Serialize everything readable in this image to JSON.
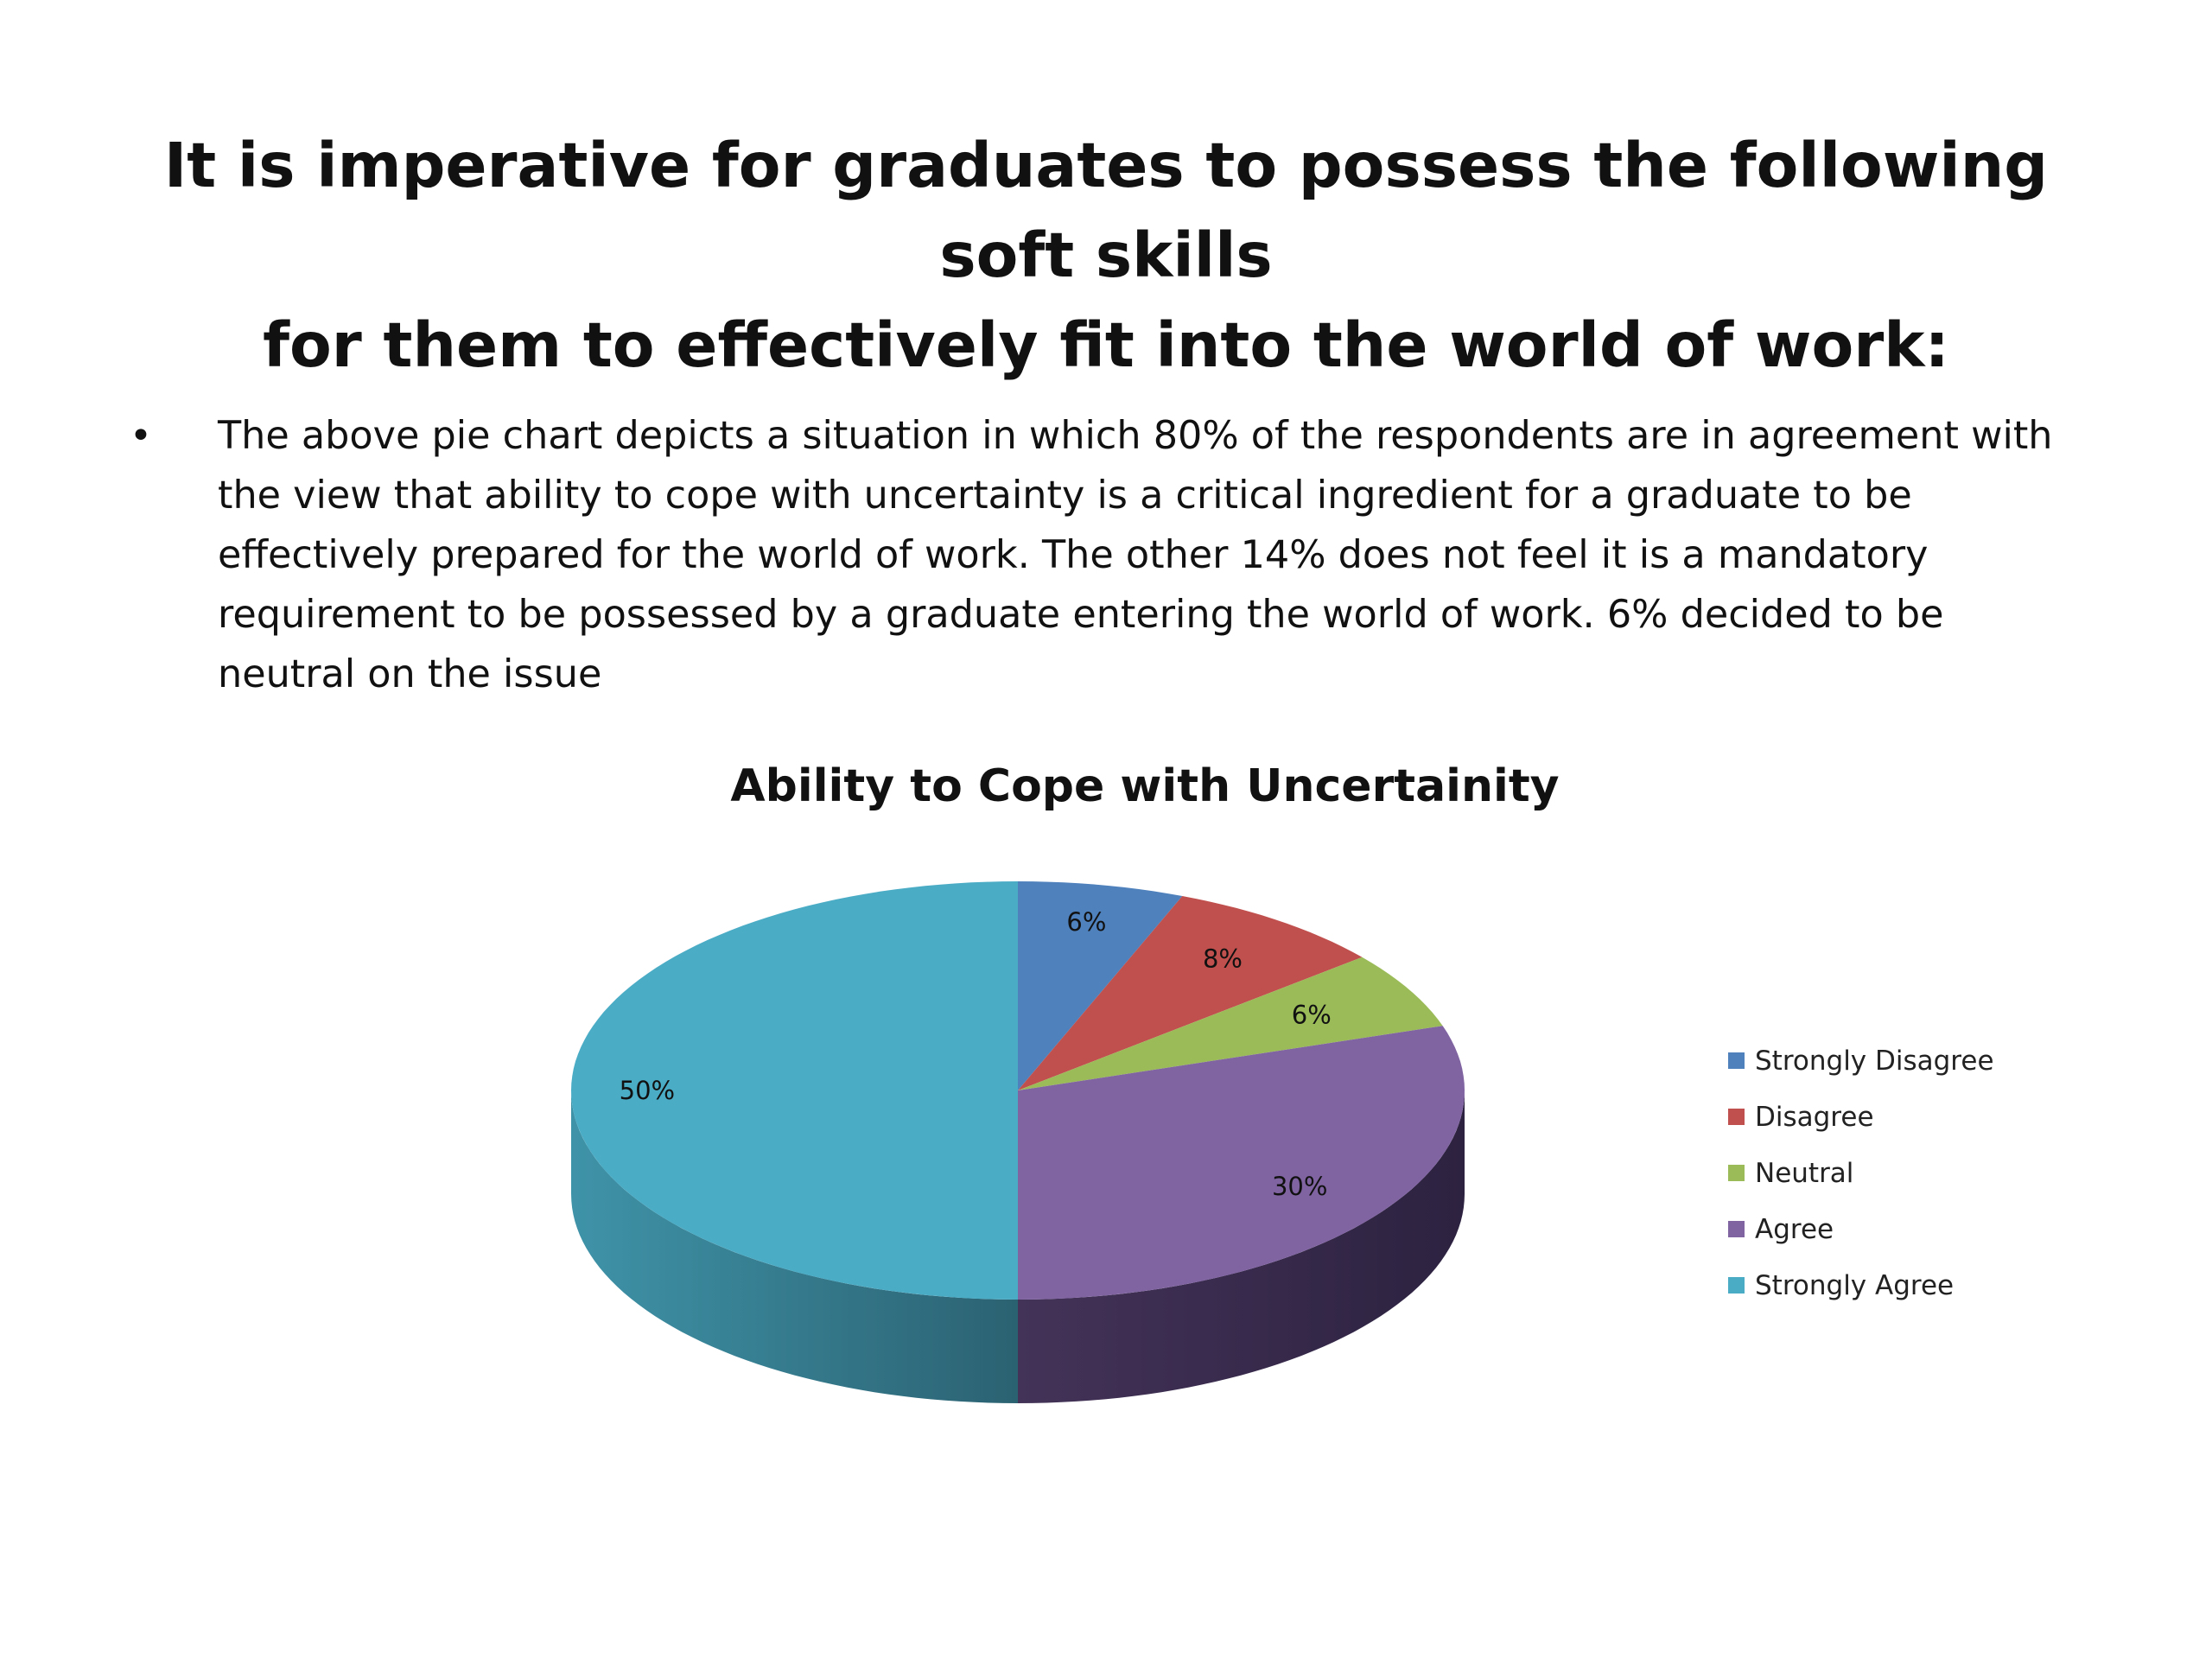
{
  "slide": {
    "title_line1": "It is imperative for graduates to possess the following soft skills",
    "title_line2": "for them to effectively fit into the world of work:",
    "bullet_symbol": "•",
    "bullet_text": "The above pie chart depicts a situation in which 80% of the respondents are in agreement with the view that ability to cope with uncertainty is a critical ingredient for a graduate to be effectively prepared for the world of work. The other 14% does not feel it is a mandatory requirement to be possessed by a graduate entering the world of work. 6% decided to be neutral on the issue"
  },
  "chart_data": {
    "type": "pie",
    "style": "3d",
    "title": "Ability to Cope with Uncertainity",
    "categories": [
      "Strongly Disagree",
      "Disagree",
      "Neutral",
      "Agree",
      "Strongly Agree"
    ],
    "values": [
      6,
      8,
      6,
      30,
      50
    ],
    "data_labels": [
      "6%",
      "8%",
      "6%",
      "30%",
      "50%"
    ],
    "colors": [
      "#4F81BD",
      "#C0504D",
      "#9BBB59",
      "#8064A2",
      "#4BACC6"
    ],
    "legend_position": "right"
  }
}
